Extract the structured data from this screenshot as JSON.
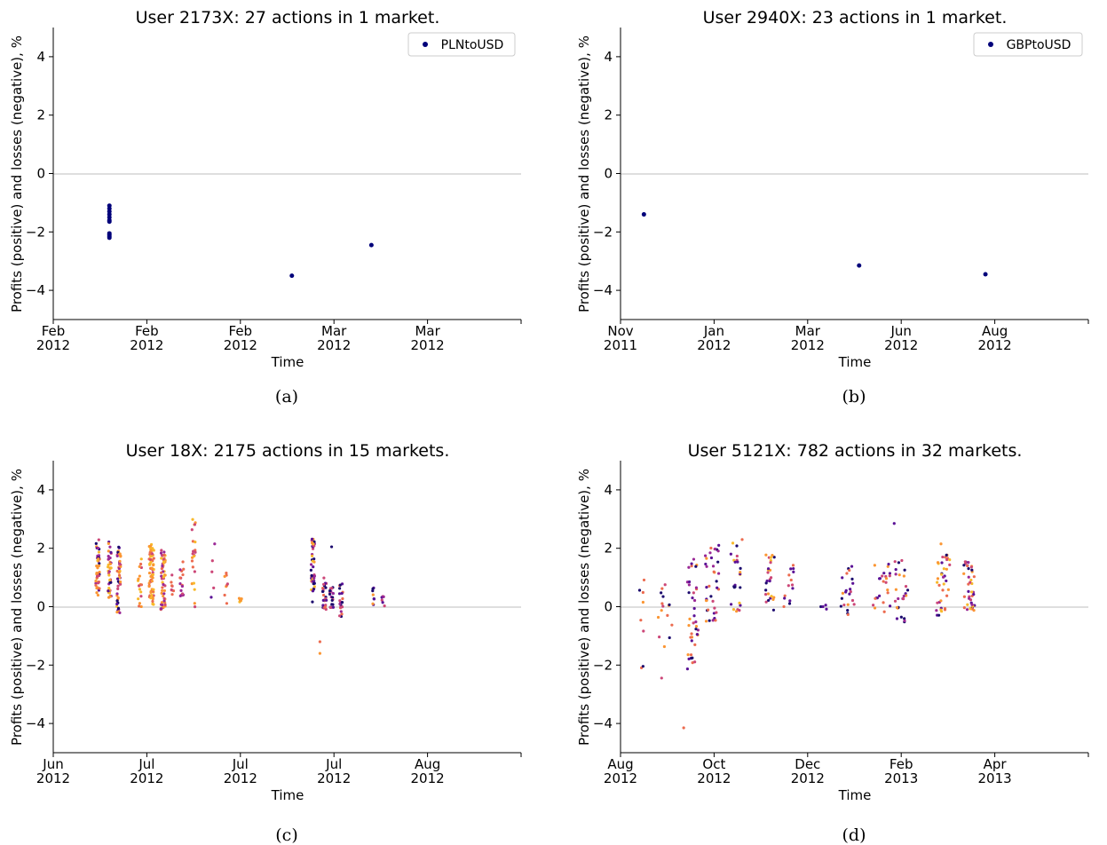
{
  "chart_data": [
    {
      "type": "scatter",
      "panel": "(a)",
      "title": "User 2173X: 27 actions in 1 market.",
      "xlabel": "Time",
      "ylabel": "Profits (positive) and losses (negative), %",
      "ylim": [
        -5,
        5
      ],
      "yticks": [
        -4,
        -2,
        0,
        2,
        4
      ],
      "xlim": [
        0,
        10
      ],
      "xticks": [
        {
          "x": 0,
          "label": [
            "Feb",
            "2012"
          ]
        },
        {
          "x": 2,
          "label": [
            "Feb",
            "2012"
          ]
        },
        {
          "x": 4,
          "label": [
            "Feb",
            "2012"
          ]
        },
        {
          "x": 6,
          "label": [
            "Mar",
            "2012"
          ]
        },
        {
          "x": 8,
          "label": [
            "Mar",
            "2012"
          ]
        }
      ],
      "zero_line": true,
      "legend": {
        "placement": "top-right",
        "entries": [
          {
            "name": "PLNtoUSD",
            "color": "#00007a"
          }
        ]
      },
      "series": [
        {
          "name": "PLNtoUSD",
          "color": "#00007a",
          "points": [
            [
              1.2,
              -1.1
            ],
            [
              1.2,
              -1.2
            ],
            [
              1.2,
              -1.3
            ],
            [
              1.2,
              -1.4
            ],
            [
              1.2,
              -1.5
            ],
            [
              1.2,
              -1.6
            ],
            [
              1.2,
              -1.65
            ],
            [
              1.2,
              -2.05
            ],
            [
              1.2,
              -2.1
            ],
            [
              1.2,
              -2.15
            ],
            [
              1.2,
              -2.2
            ],
            [
              5.1,
              -3.5
            ],
            [
              6.8,
              -2.45
            ]
          ]
        }
      ]
    },
    {
      "type": "scatter",
      "panel": "(b)",
      "title": "User 2940X: 23 actions in 1 market.",
      "xlabel": "Time",
      "ylabel": "Profits (positive) and losses (negative), %",
      "ylim": [
        -5,
        5
      ],
      "yticks": [
        -4,
        -2,
        0,
        2,
        4
      ],
      "xlim": [
        0,
        10
      ],
      "xticks": [
        {
          "x": 0,
          "label": [
            "Nov",
            "2011"
          ]
        },
        {
          "x": 2,
          "label": [
            "Jan",
            "2012"
          ]
        },
        {
          "x": 4,
          "label": [
            "Mar",
            "2012"
          ]
        },
        {
          "x": 6,
          "label": [
            "Jun",
            "2012"
          ]
        },
        {
          "x": 8,
          "label": [
            "Aug",
            "2012"
          ]
        }
      ],
      "zero_line": true,
      "legend": {
        "placement": "top-right",
        "entries": [
          {
            "name": "GBPtoUSD",
            "color": "#00007a"
          }
        ]
      },
      "series": [
        {
          "name": "GBPtoUSD",
          "color": "#00007a",
          "points": [
            [
              0.5,
              -1.4
            ],
            [
              5.1,
              -3.15
            ],
            [
              7.8,
              -3.45
            ]
          ]
        }
      ]
    },
    {
      "type": "scatter",
      "panel": "(c)",
      "title": "User 18X: 2175 actions in 15 markets.",
      "xlabel": "Time",
      "ylabel": "Profits (positive) and losses (negative), %",
      "ylim": [
        -5,
        5
      ],
      "yticks": [
        -4,
        -2,
        0,
        2,
        4
      ],
      "xlim": [
        0,
        10
      ],
      "xticks": [
        {
          "x": 0,
          "label": [
            "Jun",
            "2012"
          ]
        },
        {
          "x": 2,
          "label": [
            "Jul",
            "2012"
          ]
        },
        {
          "x": 4,
          "label": [
            "Jul",
            "2012"
          ]
        },
        {
          "x": 6,
          "label": [
            "Jul",
            "2012"
          ]
        },
        {
          "x": 8,
          "label": [
            "Aug",
            "2012"
          ]
        }
      ],
      "zero_line": true,
      "palette": [
        "#1c0a6e",
        "#5b1296",
        "#9a2896",
        "#cc4778",
        "#ec6b4f",
        "#fb9633",
        "#f8b92b"
      ],
      "clusters": [
        {
          "x": 0.95,
          "spread": 0.04,
          "ymin": 0.2,
          "ymax": 2.3,
          "count": 44,
          "colors": [
            0,
            1,
            2,
            3,
            4,
            5,
            5,
            6
          ]
        },
        {
          "x": 1.2,
          "spread": 0.04,
          "ymin": 0.3,
          "ymax": 2.25,
          "count": 40,
          "colors": [
            0,
            1,
            2,
            3,
            5,
            5,
            6
          ]
        },
        {
          "x": 1.4,
          "spread": 0.04,
          "ymin": -0.25,
          "ymax": 2.25,
          "count": 48,
          "colors": [
            0,
            1,
            2,
            3,
            4,
            5,
            5,
            6
          ]
        },
        {
          "x": 1.85,
          "spread": 0.04,
          "ymin": -0.15,
          "ymax": 1.7,
          "count": 18,
          "colors": [
            3,
            4,
            5,
            5,
            6
          ]
        },
        {
          "x": 2.1,
          "spread": 0.05,
          "ymin": 0.05,
          "ymax": 2.15,
          "count": 64,
          "colors": [
            3,
            4,
            5,
            5,
            6,
            6
          ]
        },
        {
          "x": 2.35,
          "spread": 0.05,
          "ymin": -0.1,
          "ymax": 2.1,
          "count": 54,
          "colors": [
            2,
            3,
            4,
            5,
            5,
            6
          ]
        },
        {
          "x": 2.55,
          "spread": 0.03,
          "ymin": 0.1,
          "ymax": 1.2,
          "count": 8,
          "colors": [
            3,
            4
          ]
        },
        {
          "x": 2.75,
          "spread": 0.04,
          "ymin": 0.1,
          "ymax": 1.6,
          "count": 16,
          "colors": [
            2,
            3,
            4
          ]
        },
        {
          "x": 3.0,
          "spread": 0.04,
          "ymin": -0.05,
          "ymax": 3.0,
          "count": 22,
          "colors": [
            3,
            4,
            5,
            6
          ]
        },
        {
          "x": 3.4,
          "spread": 0.03,
          "ymin": 0.25,
          "ymax": 2.3,
          "count": 4,
          "colors": [
            1,
            3
          ]
        },
        {
          "x": 3.7,
          "spread": 0.04,
          "ymin": 0.1,
          "ymax": 1.55,
          "count": 8,
          "colors": [
            3,
            4,
            5
          ]
        },
        {
          "x": 4.0,
          "spread": 0.03,
          "ymin": 0.1,
          "ymax": 0.3,
          "count": 6,
          "colors": [
            5,
            6
          ]
        },
        {
          "x": 5.55,
          "spread": 0.04,
          "ymin": 0.0,
          "ymax": 2.4,
          "count": 46,
          "colors": [
            0,
            1,
            2,
            3,
            5,
            6
          ]
        },
        {
          "x": 5.8,
          "spread": 0.04,
          "ymin": -0.1,
          "ymax": 1.1,
          "count": 24,
          "colors": [
            0,
            1,
            3,
            4
          ]
        },
        {
          "x": 5.95,
          "spread": 0.04,
          "ymin": -0.05,
          "ymax": 0.7,
          "count": 20,
          "colors": [
            0,
            1,
            2,
            3
          ]
        },
        {
          "x": 6.15,
          "spread": 0.04,
          "ymin": -0.35,
          "ymax": 0.8,
          "count": 20,
          "colors": [
            0,
            1,
            2,
            3,
            4
          ]
        },
        {
          "x": 6.85,
          "spread": 0.03,
          "ymin": 0.0,
          "ymax": 0.65,
          "count": 8,
          "colors": [
            0,
            1,
            5
          ]
        },
        {
          "x": 7.05,
          "spread": 0.03,
          "ymin": -0.05,
          "ymax": 0.4,
          "count": 6,
          "colors": [
            1,
            2,
            3
          ]
        }
      ],
      "outliers": [
        [
          5.7,
          -1.2,
          4
        ],
        [
          5.7,
          -1.6,
          5
        ],
        [
          5.95,
          2.05,
          0
        ],
        [
          3.45,
          2.15,
          2
        ]
      ]
    },
    {
      "type": "scatter",
      "panel": "(d)",
      "title": "User 5121X: 782 actions in 32 markets.",
      "xlabel": "Time",
      "ylabel": "Profits (positive) and losses (negative), %",
      "ylim": [
        -5,
        5
      ],
      "yticks": [
        -4,
        -2,
        0,
        2,
        4
      ],
      "xlim": [
        0,
        10
      ],
      "xticks": [
        {
          "x": 0,
          "label": [
            "Aug",
            "2012"
          ]
        },
        {
          "x": 2,
          "label": [
            "Oct",
            "2012"
          ]
        },
        {
          "x": 4,
          "label": [
            "Dec",
            "2012"
          ]
        },
        {
          "x": 6,
          "label": [
            "Feb",
            "2013"
          ]
        },
        {
          "x": 8,
          "label": [
            "Apr",
            "2013"
          ]
        }
      ],
      "zero_line": true,
      "palette": [
        "#1c0a6e",
        "#5b1296",
        "#9a2896",
        "#cc4778",
        "#ec6b4f",
        "#fb9633",
        "#f8b92b"
      ],
      "clusters": [
        {
          "x": 0.45,
          "spread": 0.08,
          "ymin": -2.1,
          "ymax": 1.3,
          "count": 8,
          "colors": [
            0,
            3,
            4,
            5
          ]
        },
        {
          "x": 0.95,
          "spread": 0.15,
          "ymin": -2.5,
          "ymax": 0.8,
          "count": 16,
          "colors": [
            0,
            3,
            4,
            5
          ]
        },
        {
          "x": 1.55,
          "spread": 0.12,
          "ymin": -2.2,
          "ymax": 1.8,
          "count": 40,
          "colors": [
            0,
            1,
            2,
            3,
            4,
            5
          ]
        },
        {
          "x": 1.95,
          "spread": 0.15,
          "ymin": -0.5,
          "ymax": 2.1,
          "count": 36,
          "colors": [
            0,
            1,
            2,
            3,
            4,
            5
          ]
        },
        {
          "x": 2.45,
          "spread": 0.12,
          "ymin": -0.2,
          "ymax": 2.25,
          "count": 24,
          "colors": [
            0,
            1,
            3,
            5,
            6
          ]
        },
        {
          "x": 3.2,
          "spread": 0.1,
          "ymin": -0.15,
          "ymax": 1.8,
          "count": 26,
          "colors": [
            0,
            1,
            3,
            5,
            6
          ]
        },
        {
          "x": 3.6,
          "spread": 0.12,
          "ymin": -0.2,
          "ymax": 1.55,
          "count": 14,
          "colors": [
            0,
            1,
            3,
            4
          ]
        },
        {
          "x": 4.35,
          "spread": 0.07,
          "ymin": -0.1,
          "ymax": 0.1,
          "count": 4,
          "colors": [
            0,
            1
          ]
        },
        {
          "x": 4.85,
          "spread": 0.15,
          "ymin": -0.3,
          "ymax": 1.4,
          "count": 22,
          "colors": [
            0,
            1,
            3,
            4,
            5
          ]
        },
        {
          "x": 5.6,
          "spread": 0.2,
          "ymin": -0.2,
          "ymax": 1.7,
          "count": 24,
          "colors": [
            1,
            3,
            4,
            5
          ]
        },
        {
          "x": 6.0,
          "spread": 0.14,
          "ymin": -0.6,
          "ymax": 1.6,
          "count": 26,
          "colors": [
            0,
            1,
            2,
            3,
            5
          ]
        },
        {
          "x": 6.9,
          "spread": 0.15,
          "ymin": -0.3,
          "ymax": 1.8,
          "count": 36,
          "colors": [
            0,
            1,
            2,
            3,
            4,
            5,
            6
          ]
        },
        {
          "x": 7.45,
          "spread": 0.12,
          "ymin": -0.15,
          "ymax": 1.6,
          "count": 40,
          "colors": [
            0,
            1,
            2,
            3,
            4,
            5,
            6
          ]
        }
      ],
      "outliers": [
        [
          1.35,
          -4.15,
          4
        ],
        [
          5.85,
          2.85,
          1
        ],
        [
          2.1,
          2.1,
          1
        ],
        [
          2.6,
          2.3,
          4
        ],
        [
          6.85,
          2.15,
          5
        ]
      ]
    }
  ],
  "captions": [
    "(a)",
    "(b)",
    "(c)",
    "(d)"
  ]
}
